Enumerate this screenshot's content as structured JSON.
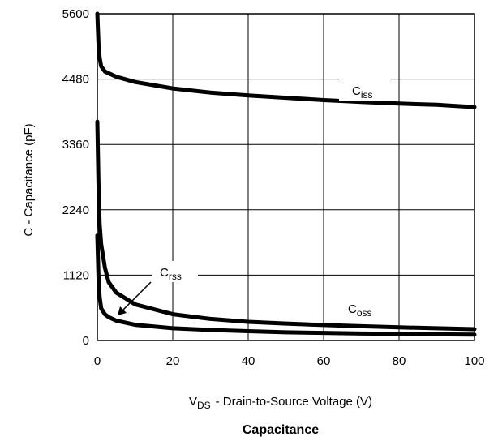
{
  "chart_data": {
    "type": "line",
    "title": "Capacitance",
    "xlabel": "V",
    "xlabel_sub": "DS",
    "xlabel_rest": "-  Drain-to-Source Voltage (V)",
    "ylabel": "C  -  Capacitance (pF)",
    "xlim": [
      0,
      100
    ],
    "ylim": [
      0,
      5600
    ],
    "x_ticks": [
      "0",
      "20",
      "40",
      "60",
      "80",
      "100"
    ],
    "y_ticks": [
      "0",
      "1120",
      "2240",
      "3360",
      "4480",
      "5600"
    ],
    "grid": true,
    "series": [
      {
        "name": "Ciss",
        "label_main": "C",
        "label_sub": "iss",
        "points": [
          [
            0,
            5600
          ],
          [
            0.3,
            5100
          ],
          [
            0.6,
            4850
          ],
          [
            1,
            4700
          ],
          [
            2,
            4610
          ],
          [
            5,
            4520
          ],
          [
            10,
            4430
          ],
          [
            20,
            4320
          ],
          [
            30,
            4250
          ],
          [
            40,
            4200
          ],
          [
            50,
            4160
          ],
          [
            60,
            4120
          ],
          [
            70,
            4090
          ],
          [
            80,
            4060
          ],
          [
            90,
            4040
          ],
          [
            100,
            4000
          ]
        ]
      },
      {
        "name": "Coss",
        "label_main": "C",
        "label_sub": "oss",
        "points": [
          [
            0,
            3750
          ],
          [
            0.3,
            2700
          ],
          [
            0.6,
            2000
          ],
          [
            1,
            1650
          ],
          [
            2,
            1250
          ],
          [
            3,
            1000
          ],
          [
            5,
            820
          ],
          [
            10,
            620
          ],
          [
            20,
            450
          ],
          [
            30,
            370
          ],
          [
            40,
            320
          ],
          [
            50,
            290
          ],
          [
            60,
            265
          ],
          [
            70,
            245
          ],
          [
            80,
            225
          ],
          [
            90,
            210
          ],
          [
            100,
            195
          ]
        ]
      },
      {
        "name": "Crss",
        "label_main": "C",
        "label_sub": "rss",
        "points": [
          [
            0,
            1800
          ],
          [
            0.3,
            1100
          ],
          [
            0.6,
            750
          ],
          [
            1,
            550
          ],
          [
            2,
            450
          ],
          [
            3,
            400
          ],
          [
            5,
            340
          ],
          [
            10,
            270
          ],
          [
            20,
            210
          ],
          [
            30,
            180
          ],
          [
            40,
            160
          ],
          [
            50,
            140
          ],
          [
            60,
            130
          ],
          [
            70,
            120
          ],
          [
            80,
            115
          ],
          [
            90,
            105
          ],
          [
            100,
            100
          ]
        ]
      }
    ]
  }
}
